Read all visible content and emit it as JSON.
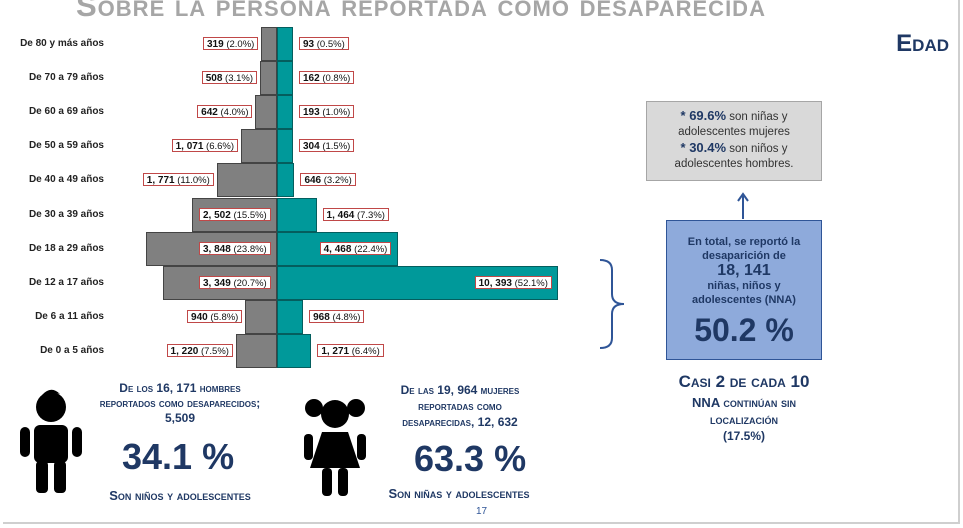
{
  "title": "Sobre la persona reportada como desaparecida",
  "section": "Edad",
  "chart_data": {
    "type": "bar",
    "categories": [
      "De 80 y más años",
      "De 70 a 79 años",
      "De 60 a 69 años",
      "De 50 a 59 años",
      "De 40 a 49 años",
      "De 30 a 39 años",
      "De 18 a 29 años",
      "De 12 a 17 años",
      "De 6 a 11 años",
      "De 0 a 5 años"
    ],
    "series": [
      {
        "values": [
          319,
          508,
          642,
          1071,
          1771,
          2502,
          3848,
          3349,
          940,
          1220
        ],
        "labels": [
          "319",
          "508",
          "642",
          "1, 071",
          "1, 771",
          "2, 502",
          "3, 848",
          "3, 349",
          "940",
          "1, 220"
        ],
        "percents": [
          "(2.0%)",
          "(3.1%)",
          "(4.0%)",
          "(6.6%)",
          "(11.0%)",
          "(15.5%)",
          "(23.8%)",
          "(20.7%)",
          "(5.8%)",
          "(7.5%)"
        ],
        "color": "#808080"
      },
      {
        "values": [
          93,
          162,
          193,
          304,
          646,
          1464,
          4468,
          10393,
          968,
          1271
        ],
        "labels": [
          "93",
          "162",
          "193",
          "304",
          "646",
          "1, 464",
          "4, 468",
          "10, 393",
          "968",
          "1, 271"
        ],
        "percents": [
          "(0.5%)",
          "(0.8%)",
          "(1.0%)",
          "(1.5%)",
          "(3.2%)",
          "(7.3%)",
          "(22.4%)",
          "(52.1%)",
          "(4.8%)",
          "(6.4%)"
        ],
        "color": "#00999a"
      }
    ]
  },
  "summary_box": {
    "line1_value": "* 69.6%",
    "line1_text": "son niñas y",
    "line2": "adolescentes mujeres",
    "line3_value": "* 30.4%",
    "line3_text": "son niños y",
    "line4": "adolescentes hombres."
  },
  "total_box": {
    "line1": "En total, se reportó la",
    "line2": "desaparición de",
    "total": "18, 141",
    "line3": "niñas, niños y",
    "line4": "adolescentes (NNA)",
    "percent": "50.2 %"
  },
  "still_missing": {
    "line1": "Casi 2 de cada 10",
    "line2": "NNA continúan sin",
    "line3": "localización",
    "line4": "(17.5%)"
  },
  "men": {
    "line1": "De los 16, 171 hombres",
    "line2": "reportados como desaparecidos;",
    "line3": "5,509",
    "percent": "34.1 %",
    "caption": "Son niños y adolescentes"
  },
  "women": {
    "line1": "De las 19, 964 mujeres",
    "line2": "reportadas como",
    "line3": "desaparecidas, 12, 632",
    "percent": "63.3 %",
    "caption": "Son niñas y adolescentes"
  },
  "page_number": "17",
  "colors": {
    "men_bar": "#808080",
    "women_bar": "#00999a",
    "navy": "#1f3864",
    "total_box": "#8eaadb"
  }
}
